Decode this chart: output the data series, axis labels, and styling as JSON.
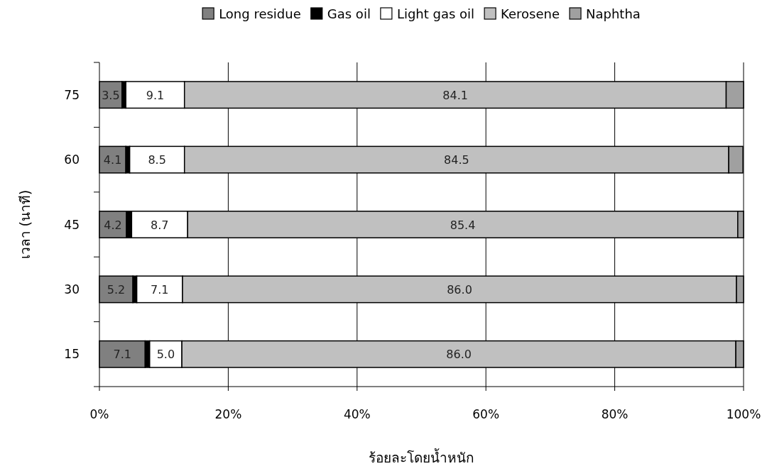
{
  "chart_data": {
    "type": "bar",
    "orientation": "horizontal",
    "stacked": true,
    "categories": [
      "75",
      "60",
      "45",
      "30",
      "15"
    ],
    "series": [
      {
        "name": "Long residue",
        "color": "#808080",
        "values": [
          3.5,
          4.1,
          4.2,
          5.2,
          7.1
        ],
        "value_labels": [
          "3.5",
          "4.1",
          "4.2",
          "5.2",
          "7.1"
        ]
      },
      {
        "name": "Gas oil",
        "color": "#000000",
        "values": [
          0.6,
          0.6,
          0.8,
          0.6,
          0.7
        ]
      },
      {
        "name": "Light gas oil",
        "color": "#ffffff",
        "values": [
          9.1,
          8.5,
          8.7,
          7.1,
          5.0
        ],
        "value_labels": [
          "9.1",
          "8.5",
          "8.7",
          "7.1",
          "5.0"
        ]
      },
      {
        "name": "Kerosene",
        "color": "#c0c0c0",
        "values": [
          84.1,
          84.5,
          85.4,
          86.0,
          86.0
        ],
        "value_labels": [
          "84.1",
          "84.5",
          "85.4",
          "86.0",
          "86.0"
        ]
      },
      {
        "name": "Naphtha",
        "color": "#a0a0a0",
        "values": [
          2.7,
          2.2,
          0.9,
          1.1,
          1.2
        ]
      }
    ],
    "xlim": [
      0,
      100
    ],
    "xticks": [
      {
        "value": 0,
        "label": "0%"
      },
      {
        "value": 20,
        "label": "20%"
      },
      {
        "value": 40,
        "label": "40%"
      },
      {
        "value": 60,
        "label": "60%"
      },
      {
        "value": 80,
        "label": "80%"
      },
      {
        "value": 100,
        "label": "100%"
      }
    ],
    "xlabel": "ร้อยละโดยน้ำหนัก",
    "ylabel": "เวลา (นาที)",
    "grid": "x",
    "legend": "top"
  }
}
